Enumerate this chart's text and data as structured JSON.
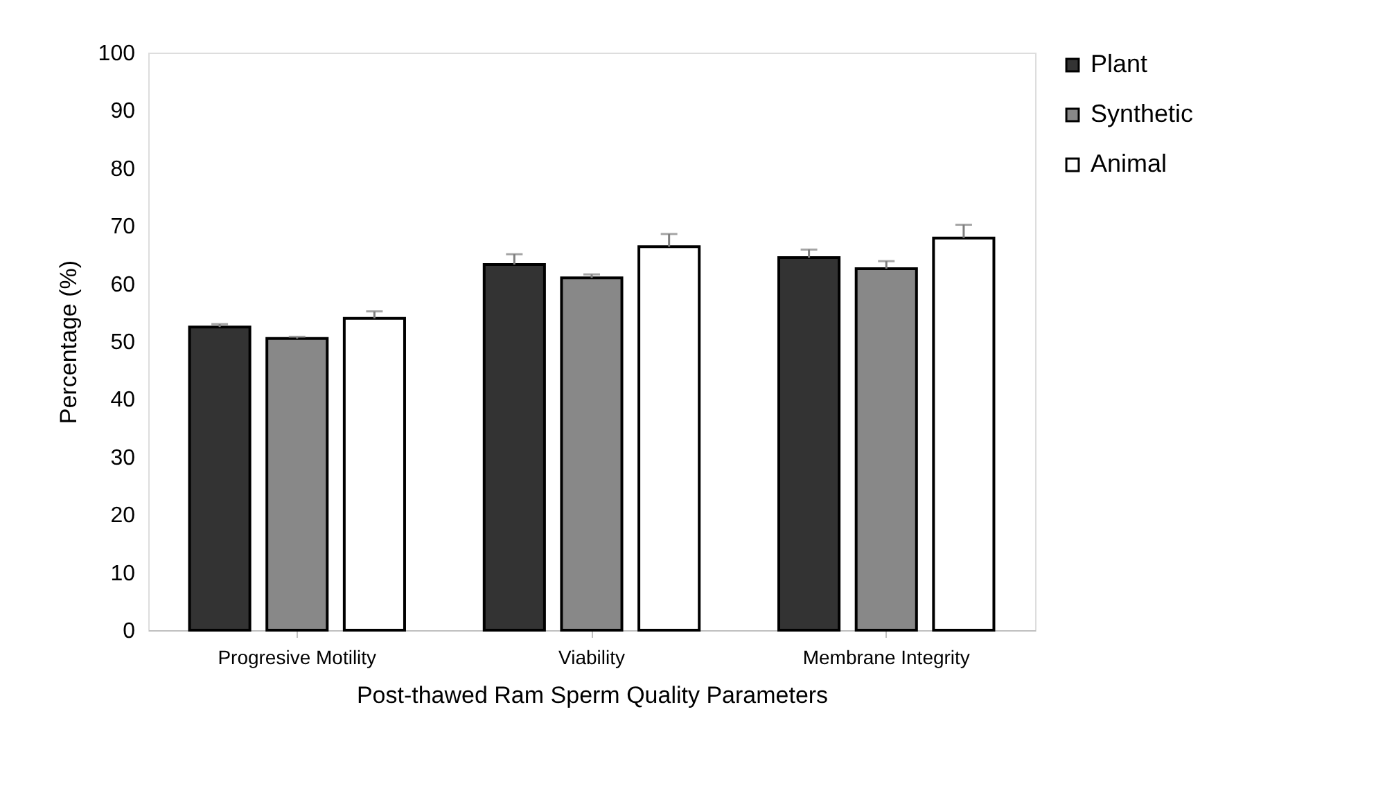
{
  "chart_data": {
    "type": "bar",
    "xlabel": "Post-thawed Ram Sperm Quality Parameters",
    "ylabel": "Percentage (%)",
    "categories": [
      "Progresive Motility",
      "Viability",
      "Membrane Integrity"
    ],
    "series": [
      {
        "name": "Plant",
        "color": "#333333",
        "values": [
          52.5,
          63.3,
          64.5
        ],
        "errors": [
          [
            52.5,
            53.0
          ],
          [
            63.3,
            65.1
          ],
          [
            64.5,
            65.9
          ]
        ]
      },
      {
        "name": "Synthetic",
        "color": "#888888",
        "values": [
          50.5,
          61.0,
          62.6
        ],
        "errors": [
          [
            50.5,
            50.8
          ],
          [
            61.0,
            61.6
          ],
          [
            62.6,
            63.9
          ]
        ]
      },
      {
        "name": "Animal",
        "color": "#ffffff",
        "values": [
          54.0,
          66.4,
          67.9
        ],
        "errors": [
          [
            54.0,
            55.2
          ],
          [
            66.4,
            68.6
          ],
          [
            67.9,
            70.2
          ]
        ]
      }
    ],
    "ylim": [
      0,
      100
    ],
    "yticks": [
      0,
      10,
      20,
      30,
      40,
      50,
      60,
      70,
      80,
      90,
      100
    ],
    "grid": false,
    "legend": "right"
  }
}
